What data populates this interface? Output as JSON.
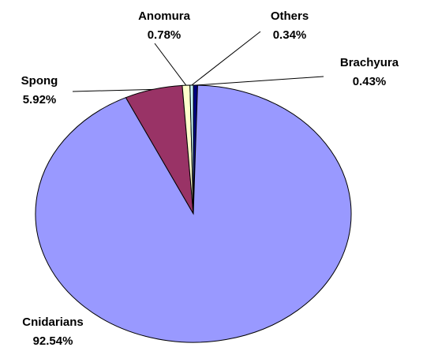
{
  "chart_data": {
    "type": "pie",
    "categories": [
      "Brachyura",
      "Cnidarians",
      "Spong",
      "Anomura",
      "Others"
    ],
    "values": [
      0.43,
      92.54,
      5.92,
      0.78,
      0.34
    ],
    "value_labels": [
      "0.43%",
      "92.54%",
      "5.92%",
      "0.78%",
      "0.34%"
    ],
    "colors": [
      "#000080",
      "#9999ff",
      "#993366",
      "#ffffcc",
      "#ccffff"
    ]
  }
}
